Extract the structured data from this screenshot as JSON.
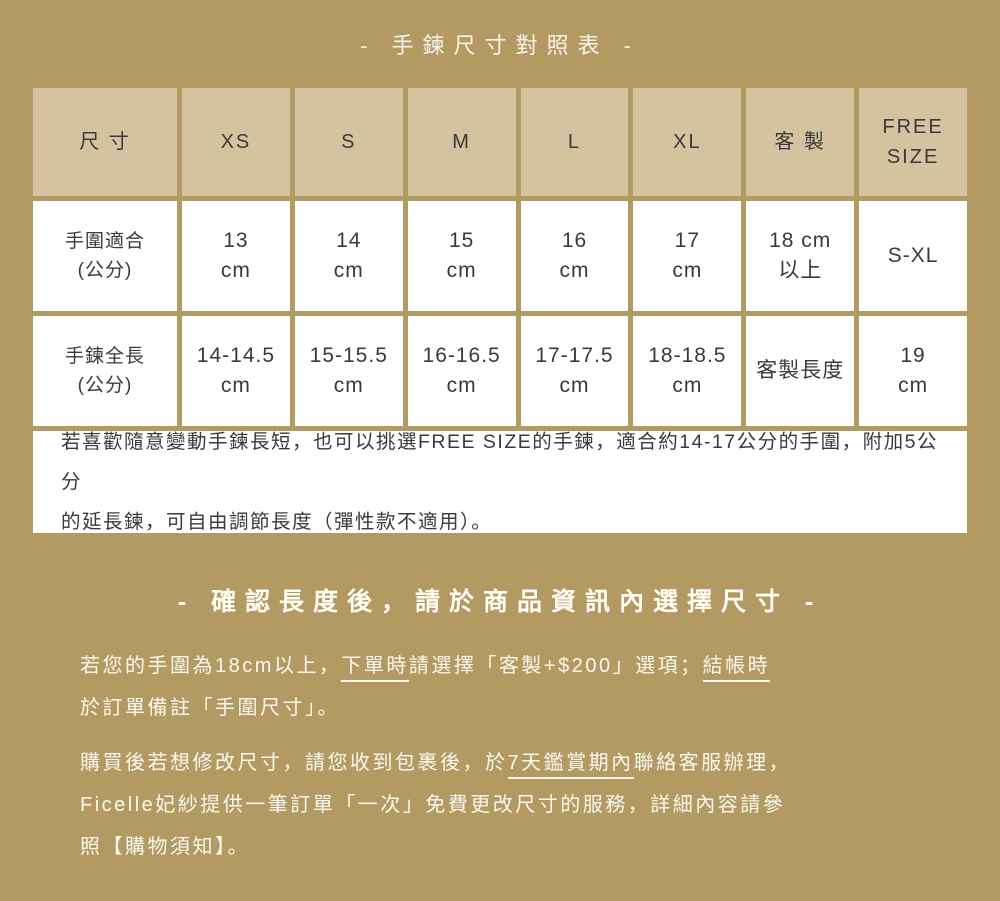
{
  "title": "- 手鍊尺寸對照表 -",
  "subtitle": "- 確認長度後，請於商品資訊內選擇尺寸 -",
  "colors": {
    "background": "#b39a62",
    "header_cell": "#d4c39e",
    "body_cell": "#ffffff",
    "dark_text": "#3a3a3a",
    "light_text": "#fbf8f1"
  },
  "table": {
    "header": [
      [
        "尺 寸"
      ],
      [
        "XS"
      ],
      [
        "S"
      ],
      [
        "M"
      ],
      [
        "L"
      ],
      [
        "XL"
      ],
      [
        "客 製"
      ],
      [
        "FREE",
        "SIZE"
      ]
    ],
    "rows": [
      {
        "label": [
          "手圍適合",
          "(公分)"
        ],
        "cells": [
          [
            "13",
            "cm"
          ],
          [
            "14",
            "cm"
          ],
          [
            "15",
            "cm"
          ],
          [
            "16",
            "cm"
          ],
          [
            "17",
            "cm"
          ],
          [
            "18 cm",
            "以上"
          ],
          [
            "S-XL"
          ]
        ]
      },
      {
        "label": [
          "手鍊全長",
          "(公分)"
        ],
        "cells": [
          [
            "14-14.5",
            "cm"
          ],
          [
            "15-15.5",
            "cm"
          ],
          [
            "16-16.5",
            "cm"
          ],
          [
            "17-17.5",
            "cm"
          ],
          [
            "18-18.5",
            "cm"
          ],
          [
            "客製長度"
          ],
          [
            "19",
            "cm"
          ]
        ]
      }
    ],
    "note_lines": [
      "若喜歡隨意變動手鍊長短，也可以挑選FREE SIZE的手鍊，適合約14-17公分的手圍，附加5公分",
      "的延長鍊，可自由調節長度（彈性款不適用）。"
    ]
  },
  "paragraphs": [
    {
      "lines": [
        [
          {
            "t": "若您的手圍為18cm以上，"
          },
          {
            "t": "下單時",
            "u": true
          },
          {
            "t": "請選擇「客製+$200」選項；"
          },
          {
            "t": "結帳時",
            "u": true
          }
        ],
        [
          {
            "t": "於訂單備註「手圍尺寸」。"
          }
        ]
      ]
    },
    {
      "lines": [
        [
          {
            "t": "購買後若想修改尺寸，請您收到包裹後，於"
          },
          {
            "t": "7天鑑賞期內",
            "u": true
          },
          {
            "t": "聯絡客服辦理，"
          }
        ],
        [
          {
            "t": "Ficelle妃紗提供一筆訂單「一次」免費更改尺寸的服務，詳細內容請參"
          }
        ],
        [
          {
            "t": "照【購物須知】。"
          }
        ]
      ]
    }
  ]
}
